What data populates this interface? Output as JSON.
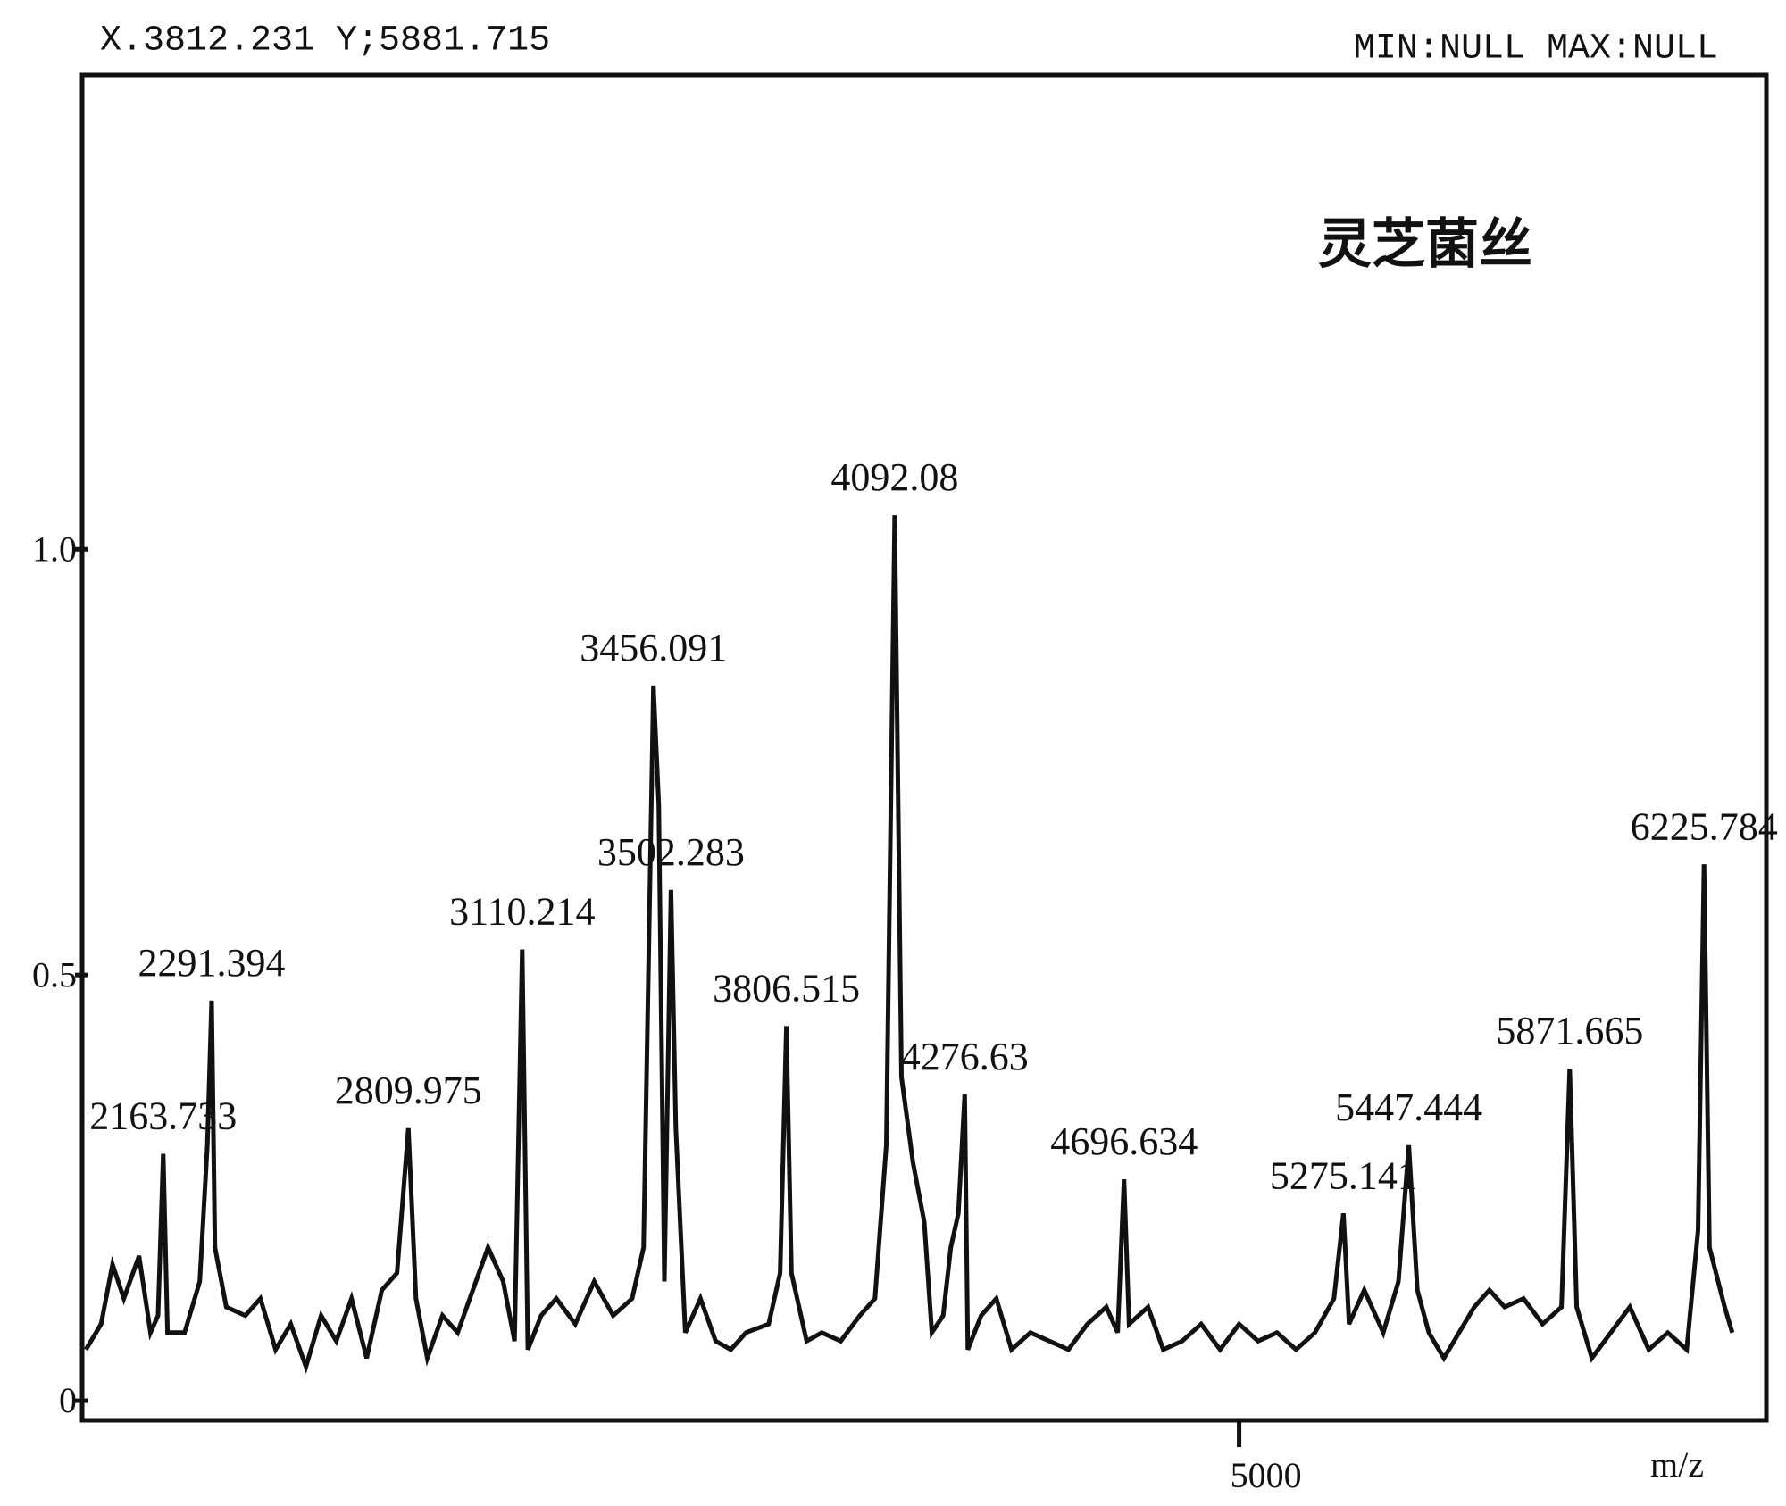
{
  "chart_data": {
    "type": "line",
    "title": "灵芝菌丝",
    "cursor_readout": "X.3812.231 Y;5881.715",
    "range_readout": "MIN:NULL MAX:NULL",
    "xlabel": "m/z",
    "color": "#111111",
    "xlim": [
      1950,
      6390
    ],
    "xticks": [
      5000
    ],
    "ylim": [
      -0.023,
      1.557
    ],
    "yticks": [
      0,
      0.5,
      {
        "value": 1,
        "label": "1.0"
      }
    ],
    "x": [
      1960,
      2000,
      2030,
      2060,
      2100,
      2130,
      2150,
      2163.733,
      2175,
      2220,
      2260,
      2280,
      2291.394,
      2300,
      2330,
      2380,
      2420,
      2460,
      2500,
      2540,
      2580,
      2620,
      2660,
      2700,
      2740,
      2780,
      2809.975,
      2830,
      2860,
      2900,
      2940,
      2980,
      3020,
      3060,
      3090,
      3110.214,
      3125,
      3160,
      3200,
      3250,
      3300,
      3350,
      3400,
      3430,
      3456.091,
      3470,
      3485,
      3502.283,
      3515,
      3540,
      3580,
      3620,
      3660,
      3700,
      3760,
      3790,
      3806.515,
      3820,
      3860,
      3900,
      3950,
      4000,
      4040,
      4070,
      4092.08,
      4110,
      4140,
      4170,
      4190,
      4220,
      4240,
      4260,
      4276.63,
      4285,
      4320,
      4360,
      4400,
      4450,
      4500,
      4550,
      4600,
      4650,
      4680,
      4696.634,
      4710,
      4760,
      4800,
      4850,
      4900,
      4950,
      5000,
      5050,
      5100,
      5150,
      5200,
      5250,
      5275.141,
      5290,
      5330,
      5380,
      5420,
      5447.444,
      5470,
      5500,
      5540,
      5580,
      5620,
      5660,
      5700,
      5750,
      5800,
      5850,
      5871.665,
      5890,
      5930,
      5980,
      6030,
      6080,
      6130,
      6180,
      6210,
      6225.784,
      6240,
      6280,
      6300
    ],
    "values": [
      0.06,
      0.09,
      0.16,
      0.12,
      0.17,
      0.08,
      0.1,
      0.29,
      0.08,
      0.08,
      0.14,
      0.3,
      0.47,
      0.18,
      0.11,
      0.1,
      0.12,
      0.06,
      0.09,
      0.04,
      0.1,
      0.07,
      0.12,
      0.05,
      0.13,
      0.15,
      0.32,
      0.12,
      0.05,
      0.1,
      0.08,
      0.13,
      0.18,
      0.14,
      0.07,
      0.53,
      0.06,
      0.1,
      0.12,
      0.09,
      0.14,
      0.1,
      0.12,
      0.18,
      0.84,
      0.7,
      0.14,
      0.6,
      0.32,
      0.08,
      0.12,
      0.07,
      0.06,
      0.08,
      0.09,
      0.15,
      0.44,
      0.15,
      0.07,
      0.08,
      0.07,
      0.1,
      0.12,
      0.3,
      1.04,
      0.38,
      0.28,
      0.21,
      0.08,
      0.1,
      0.18,
      0.22,
      0.36,
      0.06,
      0.1,
      0.12,
      0.06,
      0.08,
      0.07,
      0.06,
      0.09,
      0.11,
      0.08,
      0.26,
      0.09,
      0.11,
      0.06,
      0.07,
      0.09,
      0.06,
      0.09,
      0.07,
      0.08,
      0.06,
      0.08,
      0.12,
      0.22,
      0.09,
      0.13,
      0.08,
      0.14,
      0.3,
      0.13,
      0.08,
      0.05,
      0.08,
      0.11,
      0.13,
      0.11,
      0.12,
      0.09,
      0.11,
      0.39,
      0.11,
      0.05,
      0.08,
      0.11,
      0.06,
      0.08,
      0.06,
      0.2,
      0.63,
      0.18,
      0.11,
      0.08
    ],
    "peak_labels": [
      2163.733,
      2291.394,
      2809.975,
      3110.214,
      3456.091,
      3502.283,
      3806.515,
      4092.08,
      4276.63,
      4696.634,
      5275.141,
      5447.444,
      5871.665,
      6225.784
    ]
  }
}
